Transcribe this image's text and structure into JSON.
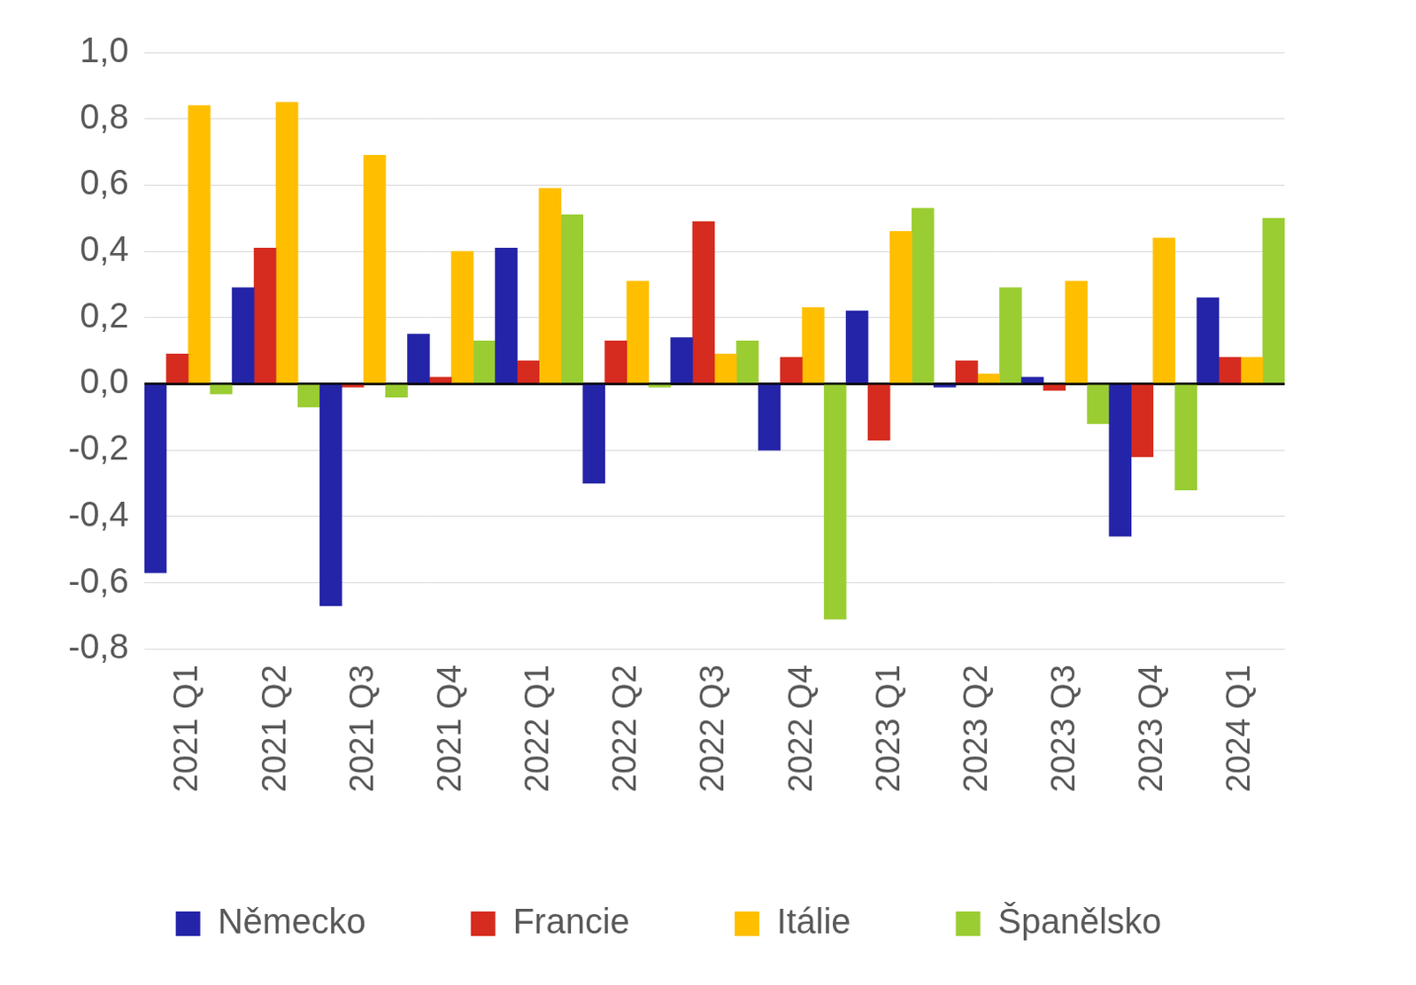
{
  "chart_data": {
    "type": "bar",
    "categories": [
      "2021 Q1",
      "2021 Q2",
      "2021 Q3",
      "2021 Q4",
      "2022 Q1",
      "2022 Q2",
      "2022 Q3",
      "2022 Q4",
      "2023 Q1",
      "2023 Q2",
      "2023 Q3",
      "2023 Q4",
      "2024 Q1"
    ],
    "series": [
      {
        "name": "Německo",
        "color": "#2424a8",
        "values": [
          -0.57,
          0.29,
          -0.67,
          0.15,
          0.41,
          -0.3,
          0.14,
          -0.2,
          0.22,
          -0.01,
          0.02,
          -0.46,
          0.26
        ]
      },
      {
        "name": "Francie",
        "color": "#d62b1f",
        "values": [
          0.09,
          0.41,
          -0.01,
          0.02,
          0.07,
          0.13,
          0.49,
          0.08,
          -0.17,
          0.07,
          -0.02,
          -0.22,
          0.08
        ]
      },
      {
        "name": "Itálie",
        "color": "#ffbf00",
        "values": [
          0.84,
          0.85,
          0.69,
          0.4,
          0.59,
          0.31,
          0.09,
          0.23,
          0.46,
          0.03,
          0.31,
          0.44,
          0.08
        ]
      },
      {
        "name": "Španělsko",
        "color": "#9acd32",
        "values": [
          -0.03,
          -0.07,
          -0.04,
          0.13,
          0.51,
          -0.01,
          0.13,
          -0.71,
          0.53,
          0.29,
          -0.12,
          -0.32,
          0.5
        ]
      }
    ],
    "ylim": [
      -0.8,
      1.0
    ],
    "yticks": [
      {
        "value": -0.8,
        "label": "-0,8"
      },
      {
        "value": -0.6,
        "label": "-0,6"
      },
      {
        "value": -0.4,
        "label": "-0,4"
      },
      {
        "value": -0.2,
        "label": "-0,2"
      },
      {
        "value": 0,
        "label": "0,0"
      },
      {
        "value": 0.2,
        "label": "0,2"
      },
      {
        "value": 0.4,
        "label": "0,4"
      },
      {
        "value": 0.6,
        "label": "0,6"
      },
      {
        "value": 0.8,
        "label": "0,8"
      },
      {
        "value": 1.0,
        "label": "1,0"
      }
    ],
    "grid": true,
    "legend": "bottom"
  }
}
